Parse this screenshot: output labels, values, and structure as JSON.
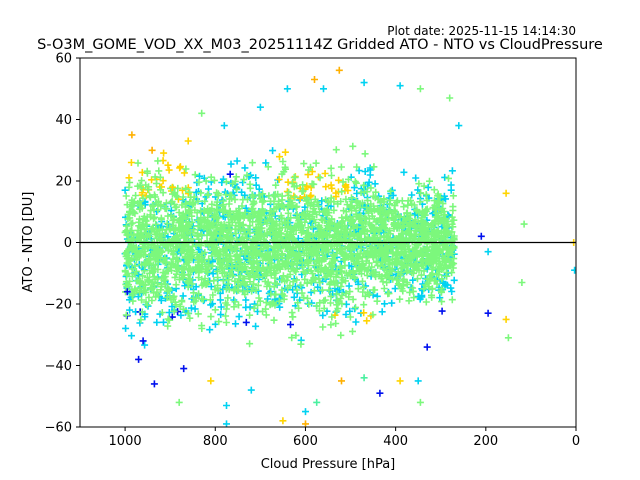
{
  "figure": {
    "plot_date": "Plot date: 2025-11-15 14:14:30"
  },
  "chart_data": {
    "type": "scatter",
    "title": "S-O3M_GOME_VOD_XX_M03_20251114Z Gridded ATO - NTO vs CloudPressure",
    "xlabel": "Cloud Pressure [hPa]",
    "ylabel": "ATO - NTO [DU]",
    "xlim": [
      1100,
      0
    ],
    "ylim": [
      -60,
      60
    ],
    "x_reversed": true,
    "xticks": [
      1000,
      800,
      600,
      400,
      200,
      0
    ],
    "yticks": [
      -60,
      -40,
      -20,
      0,
      20,
      40,
      60
    ],
    "marker": "+",
    "reference_line_y": 0,
    "grid": false,
    "colors": {
      "dark_blue": "#0010ee",
      "cyan": "#00d2f2",
      "light_green": "#7cf87c",
      "sea_green": "#4af0a0",
      "yellow": "#ffd400",
      "orange": "#ffb000"
    },
    "points": [
      {
        "x": 985,
        "y": 35,
        "c": "orange"
      },
      {
        "x": 940,
        "y": 30,
        "c": "orange"
      },
      {
        "x": 895,
        "y": 18,
        "c": "yellow"
      },
      {
        "x": 860,
        "y": 33,
        "c": "yellow"
      },
      {
        "x": 830,
        "y": 42,
        "c": "light_green"
      },
      {
        "x": 780,
        "y": 38,
        "c": "cyan"
      },
      {
        "x": 700,
        "y": 44,
        "c": "cyan"
      },
      {
        "x": 640,
        "y": 50,
        "c": "cyan"
      },
      {
        "x": 580,
        "y": 53,
        "c": "orange"
      },
      {
        "x": 560,
        "y": 50,
        "c": "cyan"
      },
      {
        "x": 525,
        "y": 56,
        "c": "orange"
      },
      {
        "x": 470,
        "y": 52,
        "c": "cyan"
      },
      {
        "x": 390,
        "y": 51,
        "c": "cyan"
      },
      {
        "x": 345,
        "y": 50,
        "c": "light_green"
      },
      {
        "x": 280,
        "y": 47,
        "c": "light_green"
      },
      {
        "x": 260,
        "y": 38,
        "c": "cyan"
      },
      {
        "x": 210,
        "y": 2,
        "c": "dark_blue"
      },
      {
        "x": 195,
        "y": -3,
        "c": "cyan"
      },
      {
        "x": 155,
        "y": 16,
        "c": "yellow"
      },
      {
        "x": 115,
        "y": 6,
        "c": "light_green"
      },
      {
        "x": 5,
        "y": 0,
        "c": "yellow"
      },
      {
        "x": 3,
        "y": -9,
        "c": "cyan"
      },
      {
        "x": 120,
        "y": -13,
        "c": "light_green"
      },
      {
        "x": 155,
        "y": -25,
        "c": "yellow"
      },
      {
        "x": 150,
        "y": -31,
        "c": "light_green"
      },
      {
        "x": 195,
        "y": -23,
        "c": "dark_blue"
      },
      {
        "x": 330,
        "y": -34,
        "c": "dark_blue"
      },
      {
        "x": 350,
        "y": -45,
        "c": "cyan"
      },
      {
        "x": 345,
        "y": -52,
        "c": "light_green"
      },
      {
        "x": 390,
        "y": -45,
        "c": "yellow"
      },
      {
        "x": 435,
        "y": -49,
        "c": "dark_blue"
      },
      {
        "x": 470,
        "y": -44,
        "c": "sea_green"
      },
      {
        "x": 520,
        "y": -45,
        "c": "orange"
      },
      {
        "x": 575,
        "y": -52,
        "c": "sea_green"
      },
      {
        "x": 600,
        "y": -55,
        "c": "cyan"
      },
      {
        "x": 600,
        "y": -59,
        "c": "orange"
      },
      {
        "x": 650,
        "y": -58,
        "c": "yellow"
      },
      {
        "x": 720,
        "y": -48,
        "c": "cyan"
      },
      {
        "x": 775,
        "y": -53,
        "c": "cyan"
      },
      {
        "x": 775,
        "y": -59,
        "c": "cyan"
      },
      {
        "x": 810,
        "y": -45,
        "c": "yellow"
      },
      {
        "x": 880,
        "y": -52,
        "c": "light_green"
      },
      {
        "x": 935,
        "y": -46,
        "c": "dark_blue"
      },
      {
        "x": 870,
        "y": -41,
        "c": "dark_blue"
      },
      {
        "x": 970,
        "y": -38,
        "c": "dark_blue"
      },
      {
        "x": 960,
        "y": -32,
        "c": "dark_blue"
      },
      {
        "x": 995,
        "y": -16,
        "c": "dark_blue"
      },
      {
        "x": 1000,
        "y": 17,
        "c": "cyan"
      },
      {
        "x": 990,
        "y": 8,
        "c": "light_green"
      },
      {
        "x": 990,
        "y": -22,
        "c": "cyan"
      }
    ]
  }
}
